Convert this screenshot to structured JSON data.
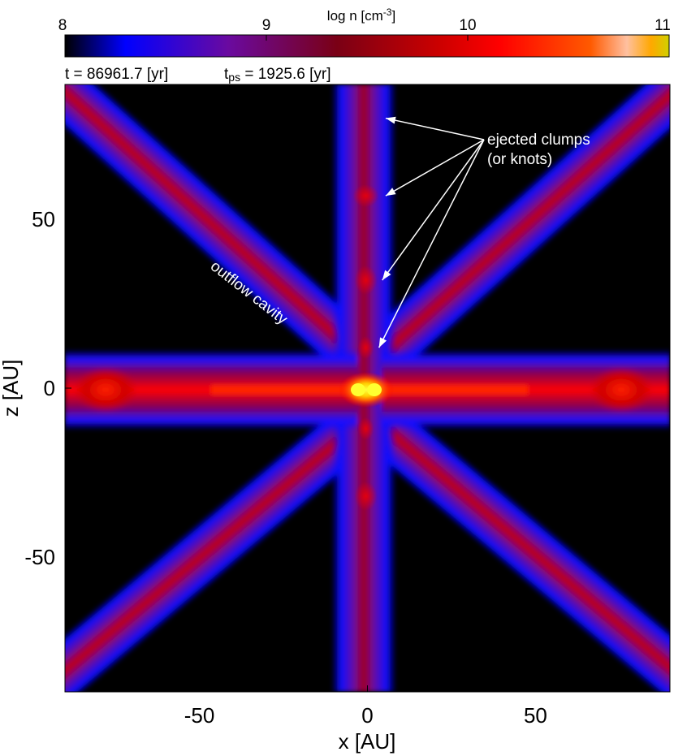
{
  "chart_data": {
    "type": "heatmap",
    "title": "",
    "xlabel": "x [AU]",
    "ylabel": "z [AU]",
    "xlim": [
      -90,
      90
    ],
    "ylim": [
      -90,
      90
    ],
    "x_ticks": [
      "-50",
      "0",
      "50"
    ],
    "y_ticks": [
      "50",
      "0",
      "-50"
    ],
    "x_tick_values": [
      -50,
      0,
      50
    ],
    "y_tick_values": [
      50,
      0,
      -50
    ],
    "colorbar": {
      "label": "log n [cm",
      "label_exponent": "-3",
      "label_close": "]",
      "range": [
        8,
        11
      ],
      "ticks": [
        "8",
        "9",
        "10",
        "11"
      ],
      "tick_values": [
        8,
        9,
        10,
        11
      ],
      "colors": [
        "#000000",
        "#0000ff",
        "#6a0aa0",
        "#7a0015",
        "#cc0000",
        "#ff0000",
        "#ff7a00",
        "#ffff00"
      ]
    },
    "time_label": "t = 86961.7 [yr]",
    "tps_label_main": "t",
    "tps_label_sub": "ps",
    "tps_label_value": " = 1925.6 [yr]",
    "annotations": {
      "clumps_line1": "ejected clumps",
      "clumps_line2": "(or knots)",
      "cavity": "outflow cavity"
    },
    "clump_positions": [
      [
        3,
        80
      ],
      [
        3,
        57
      ],
      [
        2,
        32
      ],
      [
        1,
        12
      ]
    ]
  }
}
